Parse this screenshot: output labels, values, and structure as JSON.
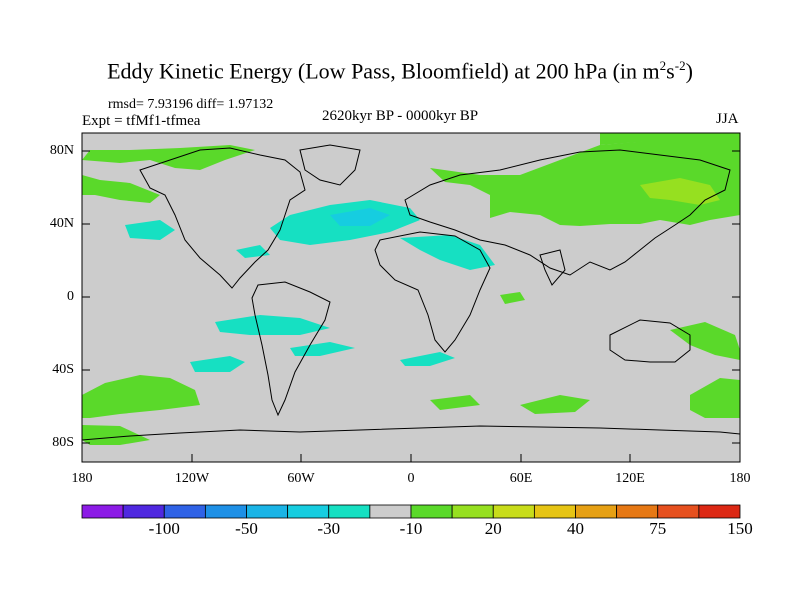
{
  "header": {
    "title_main": "Eddy Kinetic Energy (Low Pass, Bloomfield) at 200 hPa (in m",
    "title_sup1": "2",
    "title_mid": "s",
    "title_sup2": "-2",
    "title_end": ")",
    "stats": "rmsd= 7.93196 diff= 1.97132",
    "experiment": "Expt = tfMf1-tfmea",
    "period": "2620kyr BP - 0000kyr BP",
    "season": "JJA"
  },
  "axes": {
    "y_ticks": [
      "80N",
      "40N",
      "0",
      "40S",
      "80S"
    ],
    "x_ticks": [
      "180",
      "120W",
      "60W",
      "0",
      "60E",
      "120E",
      "180"
    ]
  },
  "colorbar": {
    "colors": [
      "#8c1be6",
      "#4f28e0",
      "#2f62e6",
      "#1e90e6",
      "#1ab4e6",
      "#16cde0",
      "#16e0c2",
      "#cccccc",
      "#5ad92a",
      "#96e020",
      "#c8dc1a",
      "#e6c414",
      "#e6a014",
      "#e67814",
      "#e6501e",
      "#dc2814"
    ],
    "labels": [
      "-100",
      "-50",
      "-30",
      "-10",
      "20",
      "40",
      "75",
      "150"
    ]
  },
  "legend_colors": {
    "background": "#cccccc",
    "positive": "#5ad92a",
    "positive_strong": "#96e020",
    "negative": "#16e0c2",
    "negative_strong": "#16cde0"
  }
}
